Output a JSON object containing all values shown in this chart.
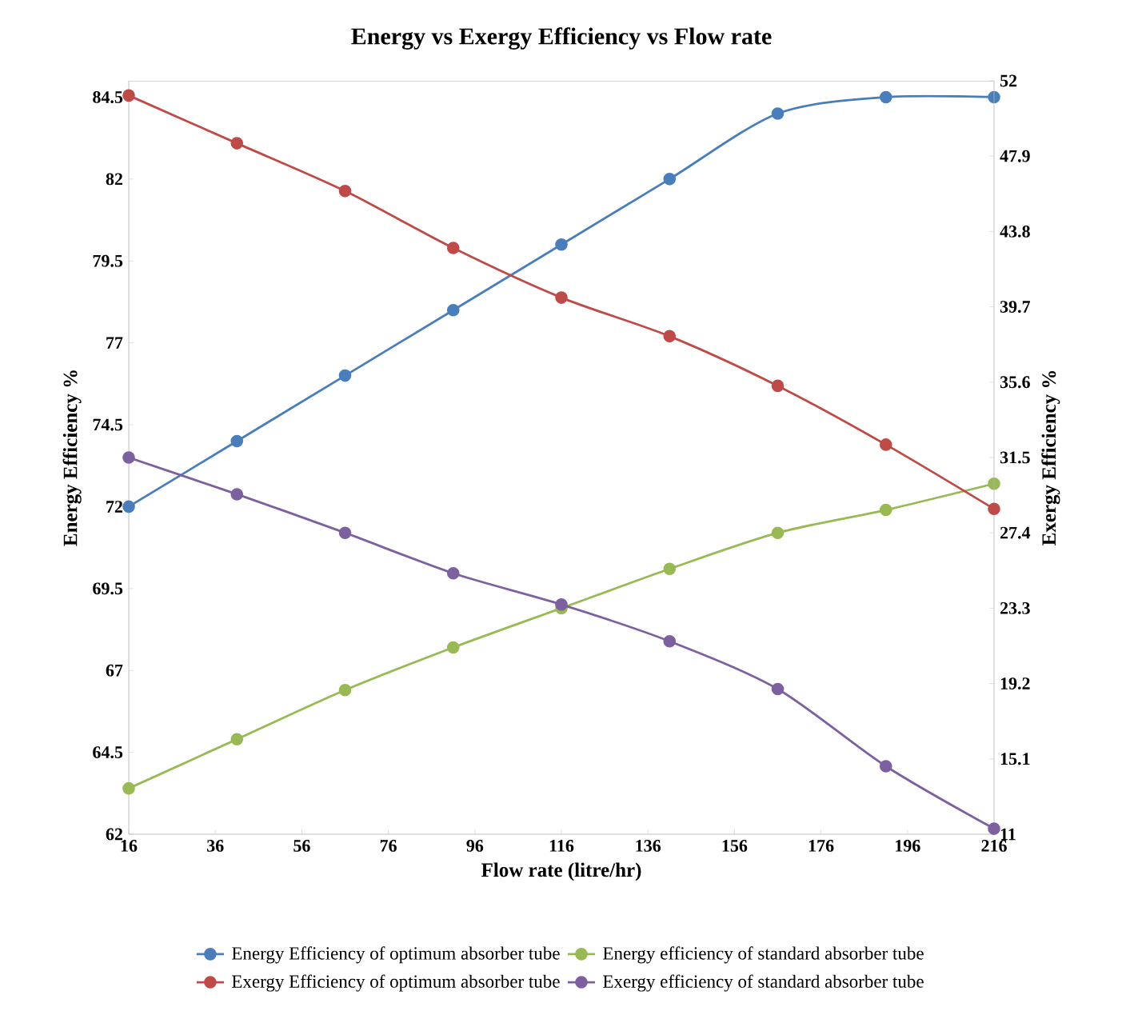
{
  "chart_data": {
    "type": "line",
    "title": "Energy vs Exergy Efficiency vs Flow rate",
    "xlabel": "Flow rate (litre/hr)",
    "ylabel": "Energy Efficiency %",
    "y2label": "Exergy Efficiency %",
    "x": [
      16,
      41,
      66,
      91,
      116,
      141,
      166,
      191,
      216
    ],
    "series": [
      {
        "name": "Energy Efficiency of optimum absorber tube",
        "color": "#4a7ebb",
        "values": [
          72,
          74,
          76,
          78,
          80,
          82,
          84,
          84.5,
          84.5
        ]
      },
      {
        "name": "Energy efficiency of standard absorber tube",
        "color": "#98b954",
        "values": [
          63.4,
          64.9,
          66.4,
          67.7,
          68.9,
          70.1,
          71.2,
          71.9,
          72.7
        ]
      },
      {
        "name": "Exergy Efficiency of optimum absorber tube",
        "color": "#be4b48",
        "axis": "y2",
        "values": [
          51.2,
          48.6,
          46.0,
          42.9,
          40.2,
          38.1,
          35.4,
          32.2,
          28.7
        ]
      },
      {
        "name": "Exergy efficiency of standard absorber tube",
        "color": "#7d60a0",
        "axis": "y2",
        "values": [
          31.5,
          29.5,
          27.4,
          25.2,
          23.5,
          21.5,
          18.9,
          14.7,
          11.3
        ]
      }
    ],
    "xlim": [
      16,
      216
    ],
    "xticks": [
      16,
      36,
      56,
      76,
      96,
      116,
      136,
      156,
      176,
      196,
      216
    ],
    "ylim": [
      62,
      85
    ],
    "yticks": [
      62,
      64.5,
      67,
      69.5,
      72,
      74.5,
      77,
      79.5,
      82,
      84.5
    ],
    "y2lim": [
      11,
      52
    ],
    "y2ticks": [
      11,
      15.1,
      19.2,
      23.3,
      27.4,
      31.5,
      35.6,
      39.7,
      43.8,
      47.9,
      52
    ],
    "legend": "bottom",
    "marker": "circle",
    "line_style": "solid",
    "grid": false
  }
}
